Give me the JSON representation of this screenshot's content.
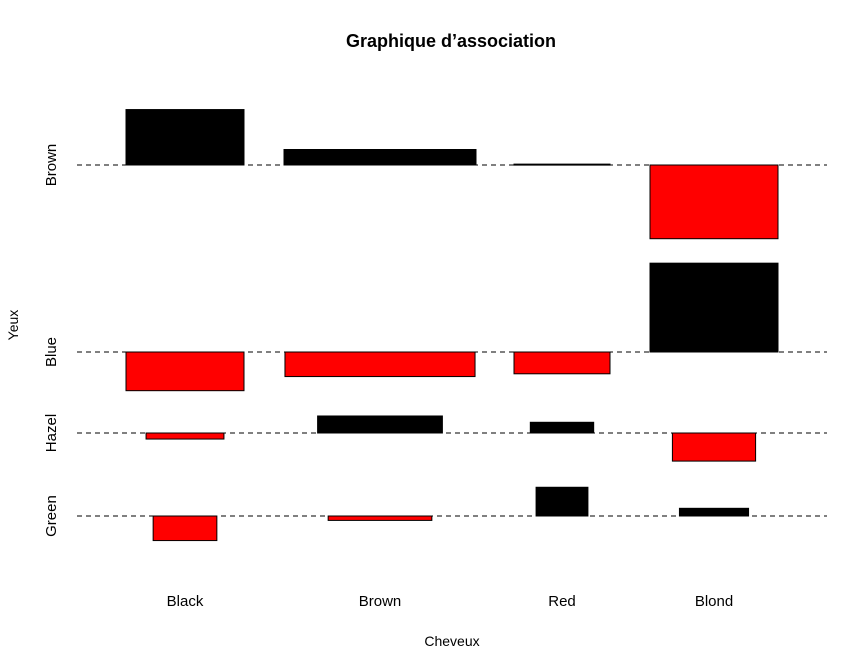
{
  "chart_data": {
    "type": "bar",
    "subtype": "association-plot",
    "title": "Graphique d’association",
    "xlabel": "Cheveux",
    "ylabel": "Yeux",
    "x_categories": [
      "Black",
      "Brown",
      "Red",
      "Blond"
    ],
    "y_categories": [
      "Brown",
      "Blue",
      "Hazel",
      "Green"
    ],
    "colors": {
      "positive": "#000000",
      "negative": "#ff0000",
      "baseline": "#000000"
    },
    "baseline_style": "dashed",
    "cells": [
      {
        "hair": "Black",
        "eye": "Brown",
        "value": 4.4
      },
      {
        "hair": "Brown",
        "eye": "Brown",
        "value": 1.23
      },
      {
        "hair": "Red",
        "eye": "Brown",
        "value": 0.07
      },
      {
        "hair": "Blond",
        "eye": "Brown",
        "value": -5.85
      },
      {
        "hair": "Black",
        "eye": "Blue",
        "value": -3.07
      },
      {
        "hair": "Brown",
        "eye": "Blue",
        "value": -1.95
      },
      {
        "hair": "Red",
        "eye": "Blue",
        "value": -1.73
      },
      {
        "hair": "Blond",
        "eye": "Blue",
        "value": 7.05
      },
      {
        "hair": "Black",
        "eye": "Hazel",
        "value": -0.48
      },
      {
        "hair": "Brown",
        "eye": "Hazel",
        "value": 1.35
      },
      {
        "hair": "Red",
        "eye": "Hazel",
        "value": 0.85
      },
      {
        "hair": "Blond",
        "eye": "Hazel",
        "value": -2.23
      },
      {
        "hair": "Black",
        "eye": "Green",
        "value": -1.95
      },
      {
        "hair": "Brown",
        "eye": "Green",
        "value": -0.35
      },
      {
        "hair": "Red",
        "eye": "Green",
        "value": 2.28
      },
      {
        "hair": "Blond",
        "eye": "Green",
        "value": 0.61
      }
    ]
  }
}
